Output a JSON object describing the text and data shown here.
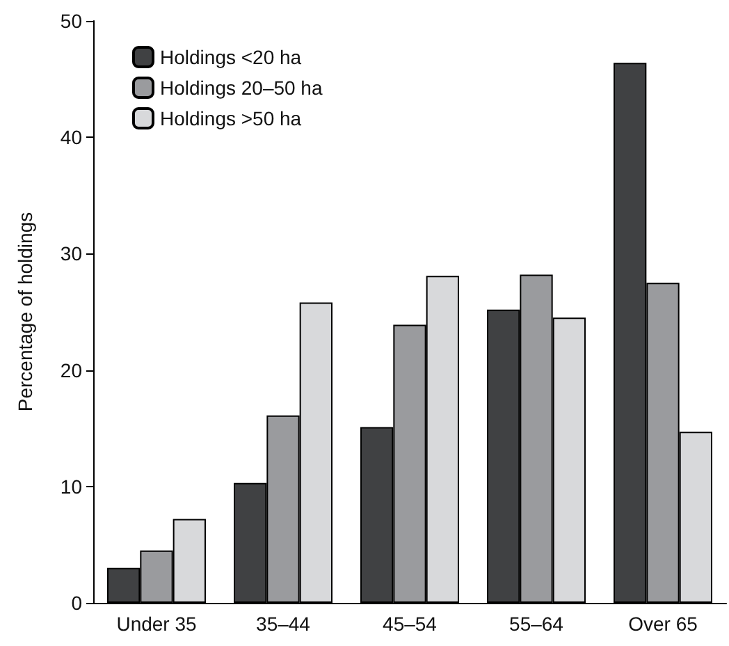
{
  "chart_data": {
    "type": "bar",
    "ylabel": "Percentage of holdings",
    "categories": [
      "Under 35",
      "35–44",
      "45–54",
      "55–64",
      "Over 65"
    ],
    "series": [
      {
        "name": "Holdings <20 ha",
        "color": "#404143",
        "values": [
          3.0,
          10.3,
          15.1,
          25.2,
          46.4
        ]
      },
      {
        "name": "Holdings 20–50 ha",
        "color": "#9a9b9e",
        "values": [
          4.5,
          16.1,
          23.9,
          28.2,
          27.5
        ]
      },
      {
        "name": "Holdings >50 ha",
        "color": "#d8d9db",
        "values": [
          7.2,
          25.8,
          28.1,
          24.5,
          14.7
        ]
      }
    ],
    "ylim": [
      0,
      50
    ],
    "yticks": [
      0,
      10,
      20,
      30,
      40,
      50
    ],
    "grid": false,
    "legend": "top left"
  }
}
